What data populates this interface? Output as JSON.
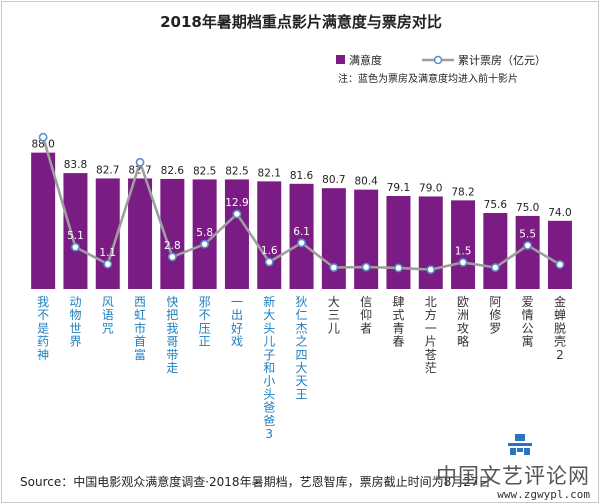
{
  "chart_data": {
    "type": "bar",
    "title": "2018年暑期档重点影片满意度与票房对比",
    "categories": [
      "我不是药神",
      "动物世界",
      "风语咒",
      "西虹市首富",
      "快把我哥带走",
      "邪不压正",
      "一出好戏",
      "新大头儿子和小头爸爸3",
      "狄仁杰之四大天王",
      "大三儿",
      "信仰者",
      "肆式青春",
      "北方一片苍茫",
      "欧洲攻略",
      "阿修罗",
      "爱情公寓",
      "金蝉脱壳2"
    ],
    "series": [
      {
        "name": "满意度",
        "type": "bar",
        "values": [
          88.0,
          83.8,
          82.7,
          82.7,
          82.6,
          82.5,
          82.5,
          82.1,
          81.6,
          80.7,
          80.4,
          79.1,
          79.0,
          78.2,
          75.6,
          75.0,
          74.0
        ],
        "labels": [
          "88.0",
          "83.8",
          "82.7",
          "82.7",
          "82.6",
          "82.5",
          "82.5",
          "82.1",
          "81.6",
          "80.7",
          "80.4",
          "79.1",
          "79.0",
          "78.2",
          "75.6",
          "75.0",
          "74.0"
        ]
      },
      {
        "name": "累计票房（亿元）",
        "type": "line",
        "values": [
          31.0,
          5.1,
          1.1,
          25.1,
          2.8,
          5.8,
          12.9,
          1.6,
          6.1,
          0.3,
          0.4,
          0.2,
          -0.2,
          1.5,
          0.3,
          5.5,
          1.0
        ],
        "labels": [
          "31.0",
          "5.1",
          "1.1",
          "25.1",
          "2.8",
          "5.8",
          "12.9",
          "1.6",
          "6.1",
          "",
          "",
          "",
          "",
          "1.5",
          "",
          "5.5",
          ""
        ]
      }
    ],
    "highlighted": [
      0,
      1,
      2,
      3,
      4,
      5,
      6,
      7,
      8
    ],
    "bar_ylim": [
      60,
      90
    ],
    "line_ylim": [
      -5,
      40
    ],
    "grid": false,
    "legend_position": "top-right",
    "note": "注：蓝色为票房及满意度均进入前十影片",
    "colors": {
      "bar": "#7B1B84",
      "line": "#9E9E9E",
      "marker_edge": "#5B8EC9",
      "highlight_label": "#1E7FC0",
      "label": "#333333"
    }
  },
  "source_text": "Source：中国电影观众满意度调查·2018年暑期档，艺恩智库，票房截止时间为8月27日",
  "watermark": {
    "main": "中国文艺评论网",
    "url": "www.zgwypl.com"
  }
}
